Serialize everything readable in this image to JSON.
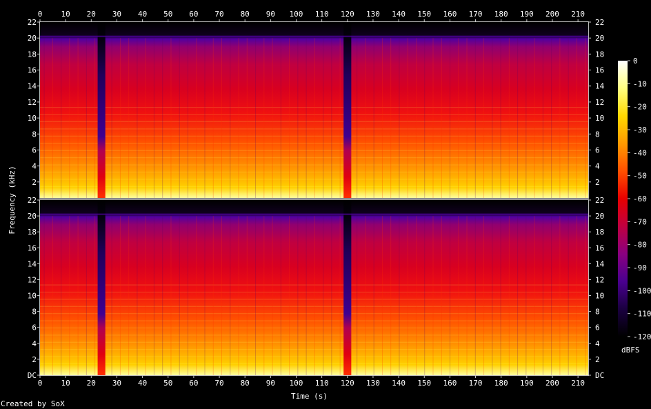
{
  "chart_data": {
    "type": "heatmap",
    "title": "",
    "xlabel": "Time (s)",
    "ylabel": "Frequency (kHz)",
    "x_ticks": [
      "0",
      "10",
      "20",
      "30",
      "40",
      "50",
      "60",
      "70",
      "80",
      "90",
      "100",
      "110",
      "120",
      "130",
      "140",
      "150",
      "160",
      "170",
      "180",
      "190",
      "200",
      "210"
    ],
    "xlim": [
      0,
      214
    ],
    "y_ticks_top": [
      "2",
      "4",
      "6",
      "8",
      "10",
      "12",
      "14",
      "16",
      "18",
      "20",
      "22"
    ],
    "y_ticks_bottom": [
      "DC",
      "2",
      "4",
      "6",
      "8",
      "10",
      "12",
      "14",
      "16",
      "18",
      "20",
      "22"
    ],
    "ylim": [
      0,
      22
    ],
    "channels": [
      "left",
      "right"
    ],
    "colorbar": {
      "label": "dBFS",
      "ticks": [
        "0",
        "-10",
        "-20",
        "-30",
        "-40",
        "-50",
        "-60",
        "-70",
        "-80",
        "-90",
        "-100",
        "-110",
        "-120"
      ],
      "range": [
        -120,
        0
      ]
    },
    "quiet_segments_s": [
      [
        22.5,
        25.5
      ],
      [
        118.5,
        121.5
      ]
    ],
    "content_cutoff_khz": 20,
    "colormap": [
      "#000000",
      "#1a0040",
      "#4a0090",
      "#8a0080",
      "#c00040",
      "#e80000",
      "#ff5000",
      "#ff9a00",
      "#ffd800",
      "#ffff80",
      "#ffffff"
    ]
  },
  "footer": {
    "credit": "Created by SoX"
  }
}
